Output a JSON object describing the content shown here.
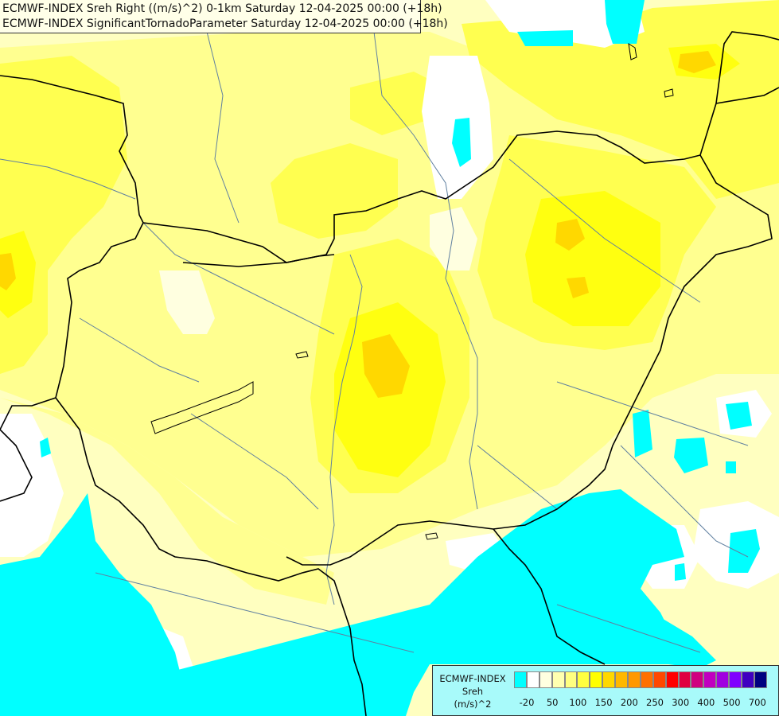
{
  "titles": {
    "line1": "ECMWF-INDEX Sreh Right ((m/s)^2) 0-1km Saturday 12-04-2025 00:00 (+18h)",
    "line2": "ECMWF-INDEX SignificantTornadoParameter Saturday 12-04-2025 00:00 (+18h)"
  },
  "legend": {
    "line1": "ECMWF-INDEX",
    "line2": "Sreh",
    "line3": "(m/s)^2",
    "colors": [
      "#00ffff",
      "#ffffff",
      "#ffffe0",
      "#ffffb0",
      "#ffff80",
      "#ffff40",
      "#ffff00",
      "#ffd800",
      "#ffb800",
      "#ff9800",
      "#ff7000",
      "#ff4800",
      "#ff0000",
      "#e00040",
      "#d00080",
      "#c000c0",
      "#a000e0",
      "#8000ff",
      "#4000c0",
      "#000080"
    ],
    "tick_labels": [
      "-20",
      "50",
      "100",
      "150",
      "200",
      "250",
      "300",
      "400",
      "500",
      "700"
    ]
  },
  "colors": {
    "cyan": "#00ffff",
    "white": "#ffffff",
    "pale": "#ffffc0",
    "light_yellow": "#ffff90",
    "yellow": "#ffff40",
    "bright_yellow": "#ffff00",
    "gold": "#ffd800",
    "border": "#000000",
    "river": "#6080a0"
  }
}
